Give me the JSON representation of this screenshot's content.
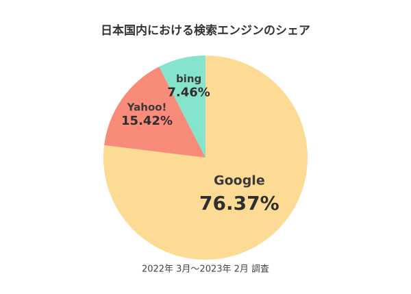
{
  "chart_data": {
    "type": "pie",
    "title": "日本国内における検索エンジンのシェア",
    "note": "2022年 3月～2023年 2月 調査",
    "categories": [
      "Google",
      "Yahoo!",
      "bing"
    ],
    "values": [
      76.37,
      15.42,
      7.46
    ],
    "value_labels": [
      "76.37%",
      "15.42%",
      "7.46%"
    ],
    "colors": [
      "#fedb94",
      "#f98b7a",
      "#86e3cc"
    ]
  }
}
